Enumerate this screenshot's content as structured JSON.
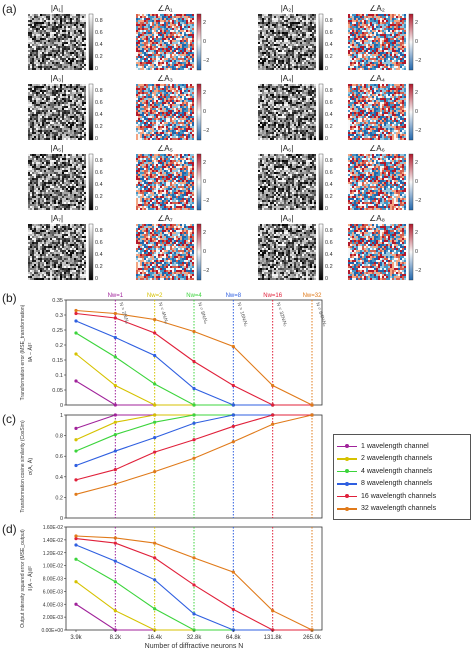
{
  "panel_letters": {
    "a": "(a)",
    "b": "(b)",
    "c": "(c)",
    "d": "(d)"
  },
  "matrix_maps": {
    "tiles": [
      {
        "amp_title": "|A₁|",
        "phase_title": "∠A₁"
      },
      {
        "amp_title": "|A₂|",
        "phase_title": "∠A₂"
      },
      {
        "amp_title": "|A₃|",
        "phase_title": "∠A₃"
      },
      {
        "amp_title": "|A₄|",
        "phase_title": "∠A₄"
      },
      {
        "amp_title": "|A₅|",
        "phase_title": "∠A₅"
      },
      {
        "amp_title": "|A₆|",
        "phase_title": "∠A₆"
      },
      {
        "amp_title": "|A₇|",
        "phase_title": "∠A₇"
      },
      {
        "amp_title": "|A₈|",
        "phase_title": "∠A₈"
      }
    ],
    "amp_colorbar_ticks": [
      "0.8",
      "0.6",
      "0.4",
      "0.2",
      "0"
    ],
    "phase_colorbar_ticks": [
      "2",
      "0",
      "−2"
    ],
    "colors": {
      "phase_high": "#b2182b",
      "phase_mid": "#f7f7f7",
      "phase_low": "#2166ac"
    }
  },
  "chart_data": {
    "type": "line",
    "xlabel": "Number of diffractive neurons N",
    "x_tick_labels": [
      "3.9k",
      "8.2k",
      "16.4k",
      "32.8k",
      "64.8k",
      "131.8k",
      "265.0k"
    ],
    "series": [
      {
        "name": "1 wavelength channel",
        "color": "#a0229a"
      },
      {
        "name": "2 wavelength channels",
        "color": "#d6c200"
      },
      {
        "name": "4 wavelength channels",
        "color": "#3cd43c"
      },
      {
        "name": "8 wavelength channels",
        "color": "#2f5fe0"
      },
      {
        "name": "16 wavelength channels",
        "color": "#e0203a"
      },
      {
        "name": "32 wavelength channels",
        "color": "#e07a1a"
      }
    ],
    "threshold_lines": [
      {
        "label": "Nw=1",
        "x_index": 1
      },
      {
        "label": "Nw=2",
        "x_index": 2
      },
      {
        "label": "Nw=4",
        "x_index": 3
      },
      {
        "label": "Nw=8",
        "x_index": 4
      },
      {
        "label": "Nw=16",
        "x_index": 5
      },
      {
        "label": "Nw=32",
        "x_index": 6
      }
    ],
    "threshold_annotations": [
      "N = 2NᵢNₒ",
      "N = 4NᵢNₒ",
      "N = 8NᵢNₒ",
      "N = 16NᵢNₒ",
      "N = 32NᵢNₒ",
      "N = 64NᵢNₒ"
    ],
    "panels": [
      {
        "id": "b",
        "ylabel": "Transformation error (MSE_transformation)",
        "ylabel2": "‖A − Â‖²",
        "ylim": [
          0,
          0.35
        ],
        "y_ticks": [
          "0",
          "0.05",
          "0.1",
          "0.15",
          "0.2",
          "0.25",
          "0.3",
          "0.35"
        ],
        "y_tick_values": [
          0,
          0.05,
          0.1,
          0.15,
          0.2,
          0.25,
          0.3,
          0.35
        ],
        "series_values": [
          [
            0.08,
            0.0,
            0.0,
            0.0,
            0.0,
            0.0,
            0.0
          ],
          [
            0.17,
            0.065,
            0.0,
            0.0,
            0.0,
            0.0,
            0.0
          ],
          [
            0.24,
            0.16,
            0.07,
            0.0,
            0.0,
            0.0,
            0.0
          ],
          [
            0.28,
            0.225,
            0.165,
            0.055,
            0.0,
            0.0,
            0.0
          ],
          [
            0.305,
            0.29,
            0.24,
            0.145,
            0.065,
            0.0,
            0.0
          ],
          [
            0.315,
            0.305,
            0.285,
            0.245,
            0.195,
            0.065,
            0.0
          ]
        ]
      },
      {
        "id": "c",
        "ylabel": "Transformation cosine similarity (CosSim)",
        "ylabel2": "σ(A, Â)",
        "ylim": [
          0,
          1
        ],
        "y_ticks": [
          "0",
          "0.2",
          "0.4",
          "0.6",
          "0.8",
          "1"
        ],
        "y_tick_values": [
          0,
          0.2,
          0.4,
          0.6,
          0.8,
          1
        ],
        "series_values": [
          [
            0.87,
            1.0,
            1.0,
            1.0,
            1.0,
            1.0,
            1.0
          ],
          [
            0.76,
            0.93,
            1.0,
            1.0,
            1.0,
            1.0,
            1.0
          ],
          [
            0.65,
            0.81,
            0.93,
            1.0,
            1.0,
            1.0,
            1.0
          ],
          [
            0.51,
            0.65,
            0.78,
            0.92,
            1.0,
            1.0,
            1.0
          ],
          [
            0.37,
            0.47,
            0.64,
            0.76,
            0.89,
            1.0,
            1.0
          ],
          [
            0.23,
            0.33,
            0.45,
            0.58,
            0.74,
            0.91,
            1.0
          ]
        ]
      },
      {
        "id": "d",
        "ylabel": "Output intensity squared error (MSE_output)",
        "ylabel2": "‖(A − Â)i‖²",
        "ylim": [
          0,
          0.016
        ],
        "y_ticks": [
          "0.00E+00",
          "2.00E-03",
          "4.00E-03",
          "6.00E-03",
          "8.00E-03",
          "1.00E-02",
          "1.20E-02",
          "1.40E-02",
          "1.60E-02"
        ],
        "y_tick_values": [
          0,
          0.002,
          0.004,
          0.006,
          0.008,
          0.01,
          0.012,
          0.014,
          0.016
        ],
        "series_values": [
          [
            0.004,
            0.0,
            0.0,
            0.0,
            0.0,
            0.0,
            0.0
          ],
          [
            0.0075,
            0.003,
            0.0,
            0.0,
            0.0,
            0.0,
            0.0
          ],
          [
            0.011,
            0.0075,
            0.0033,
            0.0,
            0.0,
            0.0,
            0.0
          ],
          [
            0.0132,
            0.0107,
            0.0078,
            0.0025,
            0.0,
            0.0,
            0.0
          ],
          [
            0.0142,
            0.0135,
            0.0112,
            0.007,
            0.0032,
            0.0,
            0.0
          ],
          [
            0.0146,
            0.0143,
            0.0135,
            0.0112,
            0.009,
            0.003,
            0.0
          ]
        ]
      }
    ]
  }
}
